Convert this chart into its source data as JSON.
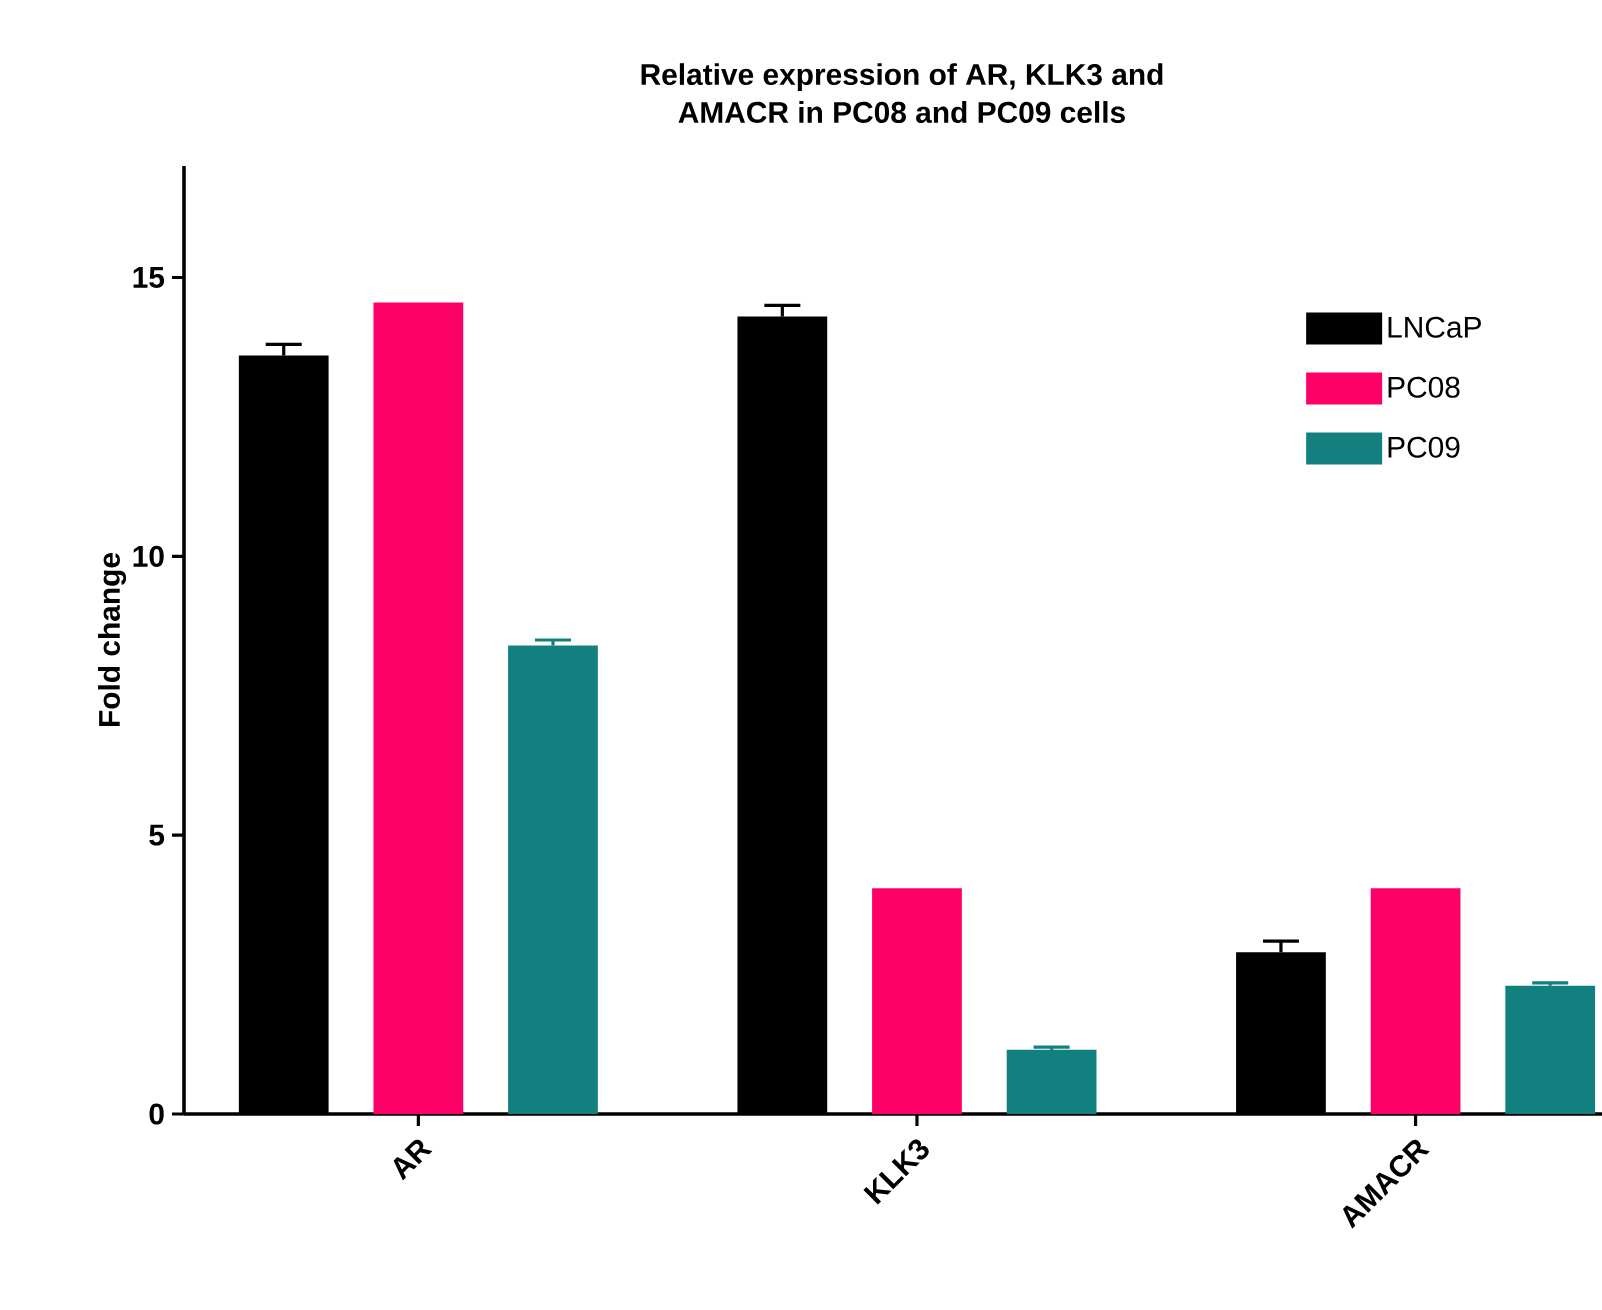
{
  "chart_data": {
    "type": "bar",
    "title": "Relative expression of AR, KLK3 and\nAMACR in PC08 and PC09 cells",
    "ylabel": "Fold change",
    "categories": [
      "AR",
      "KLK3",
      "AMACR"
    ],
    "series": [
      {
        "name": "LNCaP",
        "color": "#000000",
        "values": [
          13.6,
          14.3,
          2.9
        ],
        "errors": [
          0.2,
          0.2,
          0.2
        ]
      },
      {
        "name": "PC08",
        "color": "#ff0066",
        "values": [
          14.55,
          4.05,
          4.05
        ],
        "errors": [
          null,
          null,
          null
        ]
      },
      {
        "name": "PC09",
        "color": "#138080",
        "values": [
          8.4,
          1.15,
          2.3
        ],
        "errors": [
          0.1,
          0.05,
          0.05
        ]
      }
    ],
    "ylim": [
      0,
      17
    ],
    "yticks": [
      0,
      5,
      10,
      15
    ],
    "grid": false,
    "legend": "top right"
  }
}
